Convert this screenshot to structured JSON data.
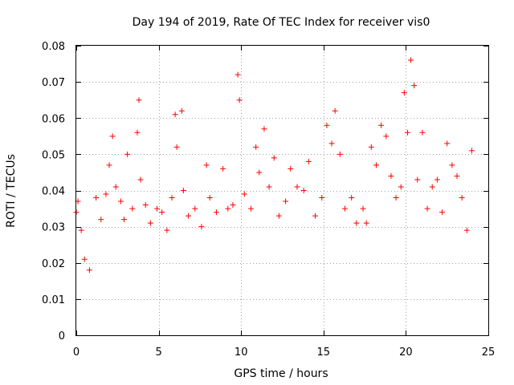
{
  "chart_data": {
    "type": "scatter",
    "title": "Day 194 of 2019, Rate Of TEC Index for receiver vis0",
    "xlabel": "GPS time / hours",
    "ylabel": "ROTI / TECUs",
    "xlim": [
      0,
      25
    ],
    "ylim": [
      0,
      0.08
    ],
    "xticks": [
      0,
      5,
      10,
      15,
      20,
      25
    ],
    "xtick_labels": [
      "0",
      "5",
      "10",
      "15",
      "20",
      "25"
    ],
    "yticks": [
      0,
      0.01,
      0.02,
      0.03,
      0.04,
      0.05,
      0.06,
      0.07,
      0.08
    ],
    "ytick_labels": [
      "0",
      "0.01",
      "0.02",
      "0.03",
      "0.04",
      "0.05",
      "0.06",
      "0.07",
      "0.08"
    ],
    "grid": true,
    "marker": "plus",
    "series": [
      {
        "name": "ROTI",
        "color": "#ff0000",
        "x": [
          0.0,
          0.1,
          0.3,
          0.5,
          0.8,
          1.2,
          1.5,
          1.8,
          2.0,
          2.2,
          2.4,
          2.7,
          2.9,
          3.1,
          3.4,
          3.7,
          3.8,
          3.9,
          4.2,
          4.5,
          4.9,
          5.2,
          5.5,
          5.8,
          6.0,
          6.1,
          6.4,
          6.5,
          6.8,
          7.2,
          7.6,
          7.9,
          8.1,
          8.5,
          8.9,
          9.2,
          9.5,
          9.8,
          9.9,
          10.2,
          10.6,
          10.9,
          11.1,
          11.4,
          11.7,
          12.0,
          12.3,
          12.7,
          13.0,
          13.4,
          13.8,
          14.1,
          14.5,
          14.9,
          15.2,
          15.5,
          15.7,
          16.0,
          16.3,
          16.7,
          17.0,
          17.4,
          17.6,
          17.9,
          18.2,
          18.5,
          18.8,
          19.1,
          19.4,
          19.7,
          19.9,
          20.1,
          20.3,
          20.5,
          20.7,
          21.0,
          21.3,
          21.6,
          21.9,
          22.2,
          22.5,
          22.8,
          23.1,
          23.4,
          23.7,
          24.0
        ],
        "y": [
          0.034,
          0.037,
          0.029,
          0.021,
          0.018,
          0.038,
          0.032,
          0.039,
          0.047,
          0.055,
          0.041,
          0.037,
          0.032,
          0.05,
          0.035,
          0.056,
          0.065,
          0.043,
          0.036,
          0.031,
          0.035,
          0.034,
          0.029,
          0.038,
          0.061,
          0.052,
          0.062,
          0.04,
          0.033,
          0.035,
          0.03,
          0.047,
          0.038,
          0.034,
          0.046,
          0.035,
          0.036,
          0.072,
          0.065,
          0.039,
          0.035,
          0.052,
          0.045,
          0.057,
          0.041,
          0.049,
          0.033,
          0.037,
          0.046,
          0.041,
          0.04,
          0.048,
          0.033,
          0.038,
          0.058,
          0.053,
          0.062,
          0.05,
          0.035,
          0.038,
          0.031,
          0.035,
          0.031,
          0.052,
          0.047,
          0.058,
          0.055,
          0.044,
          0.038,
          0.041,
          0.067,
          0.056,
          0.076,
          0.069,
          0.043,
          0.056,
          0.035,
          0.041,
          0.043,
          0.034,
          0.053,
          0.047,
          0.044,
          0.038,
          0.029,
          0.051
        ]
      }
    ]
  }
}
